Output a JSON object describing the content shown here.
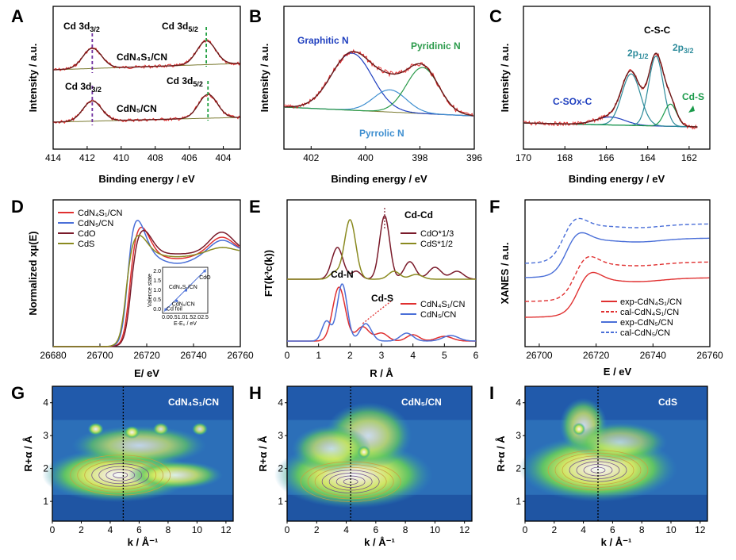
{
  "chart_data": [
    {
      "id": "A",
      "type": "line",
      "panel_label": "A",
      "xlabel": "Binding energy / eV",
      "ylabel": "Intensity / a.u.",
      "xlim": [
        414,
        403
      ],
      "xticks": [
        "414",
        "412",
        "410",
        "408",
        "406",
        "404"
      ],
      "series": [
        {
          "name": "CdN4S1/CN",
          "label": "CdN₄S₁/CN",
          "peaks": [
            411.7,
            405.0
          ]
        },
        {
          "name": "CdN5/CN",
          "label": "CdN₅/CN",
          "peaks": [
            411.7,
            404.9
          ]
        }
      ],
      "annotations": [
        "Cd 3d3/2",
        "Cd 3d5/2",
        "Cd 3d3/2",
        "Cd 3d5/2"
      ],
      "annotation_labels": [
        {
          "main": "Cd 3d",
          "sub": "3/2"
        },
        {
          "main": "Cd 3d",
          "sub": "5/2"
        },
        {
          "main": "Cd 3d",
          "sub": "3/2"
        },
        {
          "main": "Cd 3d",
          "sub": "5/2"
        }
      ]
    },
    {
      "id": "B",
      "type": "line",
      "panel_label": "B",
      "xlabel": "Binding energy / eV",
      "ylabel": "Intensity / a.u.",
      "xlim": [
        403,
        396
      ],
      "xticks": [
        "402",
        "400",
        "398",
        "396"
      ],
      "components": [
        {
          "name": "Graphitic N",
          "center": 400.5,
          "color": "#1f3fbf"
        },
        {
          "name": "Pyrrolic N",
          "center": 399.1,
          "color": "#3f8fd0"
        },
        {
          "name": "Pyridinic N",
          "center": 397.9,
          "color": "#2a9a4a"
        }
      ]
    },
    {
      "id": "C",
      "type": "line",
      "panel_label": "C",
      "xlabel": "Binding energy / eV",
      "ylabel": "Intensity / a.u.",
      "xlim": [
        170,
        161
      ],
      "xticks": [
        "170",
        "168",
        "166",
        "164",
        "162"
      ],
      "components": [
        {
          "name": "C-SOx-C",
          "center": 165.8,
          "color": "#1f3fbf"
        },
        {
          "name": "2p1/2",
          "center": 164.8,
          "color": "#2b8a9a"
        },
        {
          "name": "2p3/2",
          "center": 163.6,
          "color": "#2b8a9a"
        },
        {
          "name": "Cd-S",
          "center": 162.9,
          "color": "#1a9a4a"
        }
      ],
      "annotations": [
        "C-S-C"
      ],
      "component_labels": [
        {
          "main": "2p",
          "sub": "1/2"
        },
        {
          "main": "2p",
          "sub": "3/2"
        }
      ]
    },
    {
      "id": "D",
      "type": "line",
      "panel_label": "D",
      "xlabel": "E/ eV",
      "ylabel": "Normalized xμ(E)",
      "xlim": [
        26680,
        26760
      ],
      "xticks": [
        "26680",
        "26700",
        "26720",
        "26740",
        "26760"
      ],
      "series": [
        {
          "name": "CdN4S1/CN",
          "label": "CdN₄S₁/CN",
          "color": "#e03030"
        },
        {
          "name": "CdN5/CN",
          "label": "CdN₅/CN",
          "color": "#4a6fd8"
        },
        {
          "name": "CdO",
          "label": "CdO",
          "color": "#7a1a2a"
        },
        {
          "name": "CdS",
          "label": "CdS",
          "color": "#8a8a20"
        }
      ],
      "inset": {
        "xlabel": "E-E₀ / eV",
        "ylabel": "Valence state",
        "xticks": [
          "0.0",
          "0.5",
          "1.0",
          "1.5",
          "2.0",
          "2.5"
        ],
        "yticks": [
          "0.0",
          "0.5",
          "1.0",
          "1.5",
          "2.0"
        ],
        "points": [
          {
            "name": "Cd foil",
            "x": 0.0,
            "y": 0.0
          },
          {
            "name": "CdN5/CN",
            "label": "CdN₅/CN",
            "x": 0.7,
            "y": 0.45
          },
          {
            "name": "CdN4S1/CN",
            "label": "CdN₄S₁/CN",
            "x": 1.3,
            "y": 1.0
          },
          {
            "name": "CdO",
            "x": 2.5,
            "y": 2.0
          }
        ]
      }
    },
    {
      "id": "E",
      "type": "line",
      "panel_label": "E",
      "xlabel": "R / Å",
      "ylabel": "FT(k³c(k))",
      "xlim": [
        0,
        6
      ],
      "xticks": [
        "0",
        "1",
        "2",
        "3",
        "4",
        "5",
        "6"
      ],
      "series": [
        {
          "name": "CdO*1/3",
          "color": "#7a1a2a"
        },
        {
          "name": "CdS*1/2",
          "color": "#8a8a20"
        },
        {
          "name": "CdN4S1/CN",
          "label": "CdN₄S₁/CN",
          "color": "#e03030"
        },
        {
          "name": "CdN5/CN",
          "label": "CdN₅/CN",
          "color": "#4a6fd8"
        }
      ],
      "annotations": [
        "Cd-Cd",
        "Cd-N",
        "Cd-S"
      ]
    },
    {
      "id": "F",
      "type": "line",
      "panel_label": "F",
      "xlabel": "E / eV",
      "ylabel": "XANES / a.u.",
      "xlim": [
        26695,
        26760
      ],
      "xticks": [
        "26700",
        "26720",
        "26740",
        "26760"
      ],
      "series": [
        {
          "name": "exp-CdN4S1/CN",
          "label": "exp-CdN₄S₁/CN",
          "color": "#e03030",
          "style": "solid"
        },
        {
          "name": "cal-CdN4S1/CN",
          "label": "cal-CdN₄S₁/CN",
          "color": "#e03030",
          "style": "dashed"
        },
        {
          "name": "exp-CdN5/CN",
          "label": "exp-CdN₅/CN",
          "color": "#4a6fd8",
          "style": "solid"
        },
        {
          "name": "cal-CdN5/CN",
          "label": "cal-CdN₅/CN",
          "color": "#4a6fd8",
          "style": "dashed"
        }
      ]
    },
    {
      "id": "G",
      "type": "heatmap",
      "panel_label": "G",
      "title": "CdN4S1/CN",
      "title_label": "CdN₄S₁/CN",
      "xlabel": "k / Å⁻¹",
      "ylabel": "R+α / Å",
      "xlim": [
        0,
        12.5
      ],
      "ylim": [
        0.4,
        4.5
      ],
      "xticks": [
        "0",
        "2",
        "4",
        "6",
        "8",
        "10",
        "12"
      ],
      "yticks": [
        "1",
        "2",
        "3",
        "4"
      ],
      "maximum": {
        "k": 4.7,
        "R": 1.8
      },
      "dashed_line_k": 4.9
    },
    {
      "id": "H",
      "type": "heatmap",
      "panel_label": "H",
      "title": "CdN5/CN",
      "title_label": "CdN₅/CN",
      "xlabel": "k / Å⁻¹",
      "ylabel": "R+α / Å",
      "xlim": [
        0,
        12.5
      ],
      "ylim": [
        0.4,
        4.5
      ],
      "xticks": [
        "0",
        "2",
        "4",
        "6",
        "8",
        "10",
        "12"
      ],
      "yticks": [
        "1",
        "2",
        "3",
        "4"
      ],
      "maximum": {
        "k": 4.3,
        "R": 1.6
      },
      "dashed_line_k": 4.3
    },
    {
      "id": "I",
      "type": "heatmap",
      "panel_label": "I",
      "title": "CdS",
      "title_label": "CdS",
      "xlabel": "k / Å⁻¹",
      "ylabel": "R+α / Å",
      "xlim": [
        0,
        12.5
      ],
      "ylim": [
        0.4,
        4.5
      ],
      "xticks": [
        "0",
        "2",
        "4",
        "6",
        "8",
        "10",
        "12"
      ],
      "yticks": [
        "1",
        "2",
        "3",
        "4"
      ],
      "maximum": {
        "k": 5.0,
        "R": 1.95
      },
      "dashed_line_k": 5.0
    }
  ]
}
